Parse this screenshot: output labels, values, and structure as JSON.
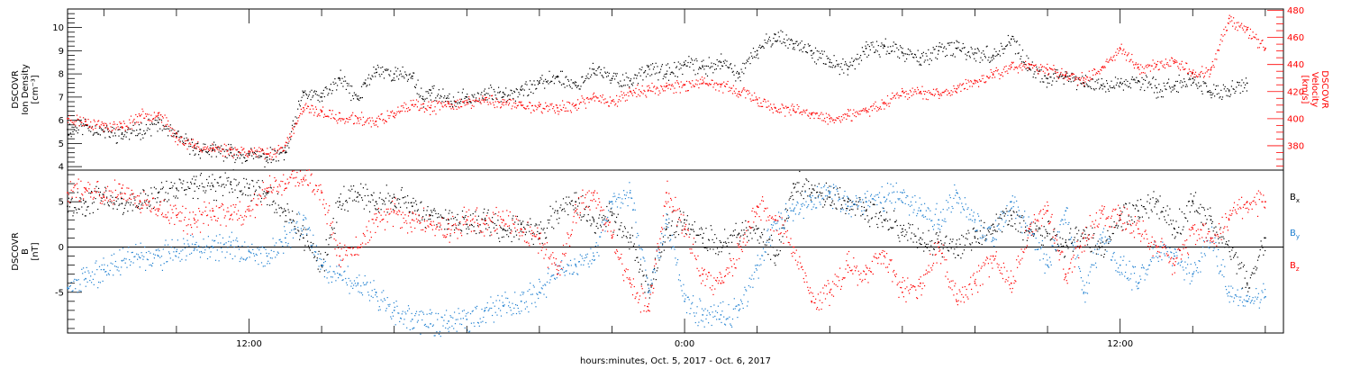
{
  "figure": {
    "xlabel": "hours:minutes, Oct.  5, 2017 - Oct.  6, 2017",
    "x_ticks": [
      "12:00",
      "0:00",
      "12:00"
    ]
  },
  "chart_data": [
    {
      "type": "scatter",
      "panel": "top",
      "ylabel_left": [
        "DSCOVR",
        "Ion Density",
        "[cm⁻³]"
      ],
      "ylabel_right": [
        "DSCOVR",
        "Velocity",
        "[km/s]"
      ],
      "x_unit": "hours since Oct. 5, 2017 00:00",
      "xlim": [
        7.0,
        40.5
      ],
      "ylim_left": [
        3.85,
        10.8
      ],
      "ylim_right": [
        362,
        481
      ],
      "y_ticks_left": [
        4,
        5,
        6,
        7,
        8,
        9,
        10
      ],
      "y_ticks_right": [
        380,
        400,
        420,
        440,
        460,
        480
      ],
      "colors": {
        "density": "#000000",
        "velocity": "#ff0000"
      },
      "series": [
        {
          "axis": "left",
          "x": [
            7.0,
            7.5,
            8.0,
            8.5,
            9.0,
            9.5,
            10.0,
            10.5,
            11.0,
            11.5,
            12.0,
            12.5,
            13.0,
            13.5,
            14.0,
            14.5,
            15.0,
            15.2,
            15.5,
            16.0,
            16.5,
            16.8,
            17.0,
            17.5,
            18.0,
            18.5,
            19.0,
            19.5,
            20.0,
            20.5,
            21.0,
            21.5,
            22.0,
            22.5,
            23.0,
            23.5,
            24.0,
            24.5,
            25.0,
            25.5,
            26.0,
            26.5,
            27.0,
            27.5,
            28.0,
            28.5,
            29.0,
            29.5,
            30.0,
            30.5,
            31.0,
            31.5,
            32.0,
            32.5,
            33.0,
            33.5,
            34.0,
            34.5,
            35.0,
            35.5,
            36.0,
            36.5,
            37.0,
            37.5,
            38.0,
            38.5,
            39.0,
            39.5
          ],
          "y": [
            5.6,
            5.8,
            5.5,
            5.4,
            5.6,
            5.9,
            5.3,
            4.8,
            4.7,
            4.6,
            4.5,
            4.4,
            4.6,
            7.2,
            7.0,
            7.8,
            6.9,
            7.6,
            8.2,
            8.0,
            7.9,
            6.9,
            7.3,
            6.8,
            7.0,
            7.1,
            7.2,
            7.3,
            7.6,
            7.9,
            7.5,
            8.2,
            7.8,
            7.7,
            8.3,
            8.0,
            8.4,
            8.3,
            8.5,
            8.0,
            9.0,
            9.7,
            9.3,
            9.0,
            8.5,
            8.2,
            9.1,
            9.2,
            8.9,
            8.7,
            9.0,
            9.1,
            8.9,
            8.8,
            9.5,
            8.2,
            7.8,
            7.9,
            7.6,
            7.5,
            7.6,
            7.7,
            7.4,
            7.5,
            7.8,
            7.2,
            7.3,
            7.6
          ]
        },
        {
          "axis": "right",
          "x": [
            7.0,
            7.5,
            8.0,
            8.5,
            9.0,
            9.5,
            10.0,
            10.5,
            11.0,
            11.5,
            12.0,
            12.5,
            13.0,
            13.5,
            14.0,
            14.5,
            15.0,
            15.5,
            16.0,
            16.5,
            17.0,
            17.5,
            18.0,
            18.5,
            19.0,
            19.5,
            20.0,
            20.5,
            21.0,
            21.5,
            22.0,
            22.5,
            23.0,
            23.5,
            24.0,
            24.5,
            25.0,
            25.5,
            26.0,
            26.5,
            27.0,
            27.5,
            28.0,
            28.5,
            29.0,
            29.5,
            30.0,
            30.5,
            31.0,
            31.5,
            32.0,
            32.5,
            33.0,
            33.5,
            34.0,
            34.5,
            35.0,
            35.5,
            36.0,
            36.5,
            37.0,
            37.5,
            38.0,
            38.5,
            39.0,
            39.5,
            40.0
          ],
          "y": [
            400,
            398,
            395,
            394,
            402,
            404,
            386,
            380,
            378,
            377,
            376,
            374,
            380,
            408,
            405,
            400,
            400,
            398,
            404,
            410,
            408,
            411,
            412,
            414,
            412,
            410,
            409,
            408,
            410,
            416,
            413,
            420,
            421,
            424,
            425,
            426,
            425,
            420,
            414,
            408,
            406,
            404,
            400,
            402,
            406,
            412,
            420,
            420,
            418,
            422,
            428,
            433,
            438,
            440,
            436,
            432,
            430,
            438,
            452,
            438,
            440,
            442,
            434,
            436,
            474,
            466,
            452
          ]
        }
      ]
    },
    {
      "type": "scatter",
      "panel": "bottom",
      "ylabel_left": [
        "DSCOVR",
        "B",
        "[nT]"
      ],
      "x_unit": "hours since Oct. 5, 2017 00:00",
      "xlim": [
        7.0,
        40.5
      ],
      "ylim": [
        -9.5,
        8.5
      ],
      "y_ticks": [
        -5,
        0,
        5
      ],
      "zero_line": true,
      "legend": [
        "Bx",
        "By",
        "Bz"
      ],
      "colors": {
        "Bx": "#000000",
        "By": "#1e7fd0",
        "Bz": "#ff0000"
      },
      "series": [
        {
          "name": "Bx",
          "x": [
            7.0,
            7.5,
            8.0,
            8.5,
            9.0,
            9.5,
            10.0,
            10.5,
            11.0,
            11.5,
            12.0,
            12.5,
            13.0,
            13.5,
            14.0,
            14.5,
            15.0,
            15.5,
            16.0,
            16.5,
            17.0,
            17.5,
            18.0,
            18.5,
            19.0,
            19.5,
            20.0,
            20.5,
            21.0,
            21.5,
            22.0,
            22.5,
            23.0,
            23.5,
            24.0,
            24.5,
            25.0,
            25.5,
            26.0,
            26.5,
            27.0,
            27.5,
            28.0,
            28.5,
            29.0,
            29.5,
            30.0,
            30.5,
            31.0,
            31.5,
            32.0,
            32.5,
            33.0,
            33.5,
            34.0,
            34.5,
            35.0,
            35.5,
            36.0,
            36.5,
            37.0,
            37.5,
            38.0,
            38.5,
            39.0,
            39.5,
            40.0
          ],
          "y": [
            4.5,
            5.0,
            5.5,
            4.8,
            5.0,
            6.0,
            6.5,
            7.0,
            6.8,
            7.2,
            6.5,
            6.0,
            4.0,
            1.0,
            -2.0,
            5.0,
            6.0,
            5.0,
            5.5,
            4.5,
            3.5,
            3.0,
            2.5,
            3.0,
            2.0,
            2.5,
            1.5,
            4.0,
            5.0,
            3.0,
            3.5,
            1.0,
            -5.0,
            2.0,
            3.0,
            1.0,
            0.5,
            1.5,
            2.0,
            -1.0,
            7.0,
            6.0,
            5.5,
            5.0,
            4.0,
            3.0,
            2.0,
            1.0,
            0.5,
            0.0,
            1.0,
            2.5,
            3.5,
            2.0,
            1.5,
            0.5,
            1.0,
            0.0,
            3.5,
            4.0,
            5.0,
            2.0,
            5.0,
            3.0,
            0.0,
            -4.0,
            1.0
          ]
        },
        {
          "name": "By",
          "x": [
            7.0,
            7.5,
            8.0,
            8.5,
            9.0,
            9.5,
            10.0,
            10.5,
            11.0,
            11.5,
            12.0,
            12.5,
            13.0,
            13.5,
            14.0,
            14.5,
            15.0,
            15.5,
            16.0,
            16.5,
            17.0,
            17.5,
            18.0,
            18.5,
            19.0,
            19.5,
            20.0,
            20.5,
            21.0,
            21.5,
            22.0,
            22.5,
            23.0,
            23.5,
            24.0,
            24.5,
            25.0,
            25.5,
            26.0,
            26.5,
            27.0,
            27.5,
            28.0,
            28.5,
            29.0,
            29.5,
            30.0,
            30.5,
            31.0,
            31.5,
            32.0,
            32.5,
            33.0,
            33.5,
            34.0,
            34.5,
            35.0,
            35.5,
            36.0,
            36.5,
            37.0,
            37.5,
            38.0,
            38.5,
            39.0,
            39.5,
            40.0
          ],
          "y": [
            -4.5,
            -3.5,
            -2.5,
            -1.5,
            -1.2,
            -1.0,
            -0.5,
            -0.2,
            0.0,
            0.2,
            -0.5,
            -1.0,
            1.0,
            3.0,
            -2.0,
            -3.0,
            -4.0,
            -5.0,
            -7.0,
            -8.0,
            -8.5,
            -8.2,
            -8.0,
            -7.0,
            -6.5,
            -6.0,
            -5.0,
            -3.0,
            -2.0,
            -1.0,
            5.0,
            6.0,
            -5.0,
            3.0,
            -6.0,
            -7.5,
            -7.5,
            -7.0,
            -2.0,
            3.0,
            4.0,
            5.0,
            6.0,
            4.5,
            5.0,
            5.5,
            6.0,
            4.0,
            3.0,
            6.0,
            3.0,
            1.0,
            5.0,
            2.0,
            -2.0,
            4.0,
            -5.0,
            1.0,
            -2.0,
            -4.0,
            0.0,
            -1.0,
            -3.0,
            1.0,
            -5.0,
            -6.0,
            -5.5
          ]
        },
        {
          "name": "Bz",
          "x": [
            7.0,
            7.5,
            8.0,
            8.5,
            9.0,
            9.5,
            10.0,
            10.5,
            11.0,
            11.5,
            12.0,
            12.5,
            13.0,
            13.5,
            14.0,
            14.5,
            15.0,
            15.5,
            16.0,
            16.5,
            17.0,
            17.5,
            18.0,
            18.5,
            19.0,
            19.5,
            20.0,
            20.5,
            21.0,
            21.5,
            22.0,
            22.5,
            23.0,
            23.5,
            24.0,
            24.5,
            25.0,
            25.5,
            26.0,
            26.5,
            27.0,
            27.5,
            28.0,
            28.5,
            29.0,
            29.5,
            30.0,
            30.5,
            31.0,
            31.5,
            32.0,
            32.5,
            33.0,
            33.5,
            34.0,
            34.5,
            35.0,
            35.5,
            36.0,
            36.5,
            37.0,
            37.5,
            38.0,
            38.5,
            39.0,
            39.5,
            40.0
          ],
          "y": [
            6.0,
            6.5,
            5.5,
            6.5,
            5.0,
            4.0,
            3.5,
            3.0,
            4.0,
            3.5,
            4.0,
            6.5,
            7.0,
            7.5,
            6.0,
            -1.0,
            0.0,
            3.0,
            4.0,
            3.0,
            2.5,
            2.0,
            3.0,
            2.5,
            3.0,
            2.0,
            1.0,
            -3.0,
            4.0,
            6.0,
            1.0,
            -4.0,
            -7.0,
            6.0,
            2.0,
            -3.0,
            -4.0,
            0.0,
            4.5,
            3.0,
            0.0,
            -6.0,
            -5.0,
            -2.0,
            -3.0,
            -1.0,
            -5.0,
            -4.0,
            0.0,
            -6.0,
            -4.0,
            -1.0,
            -4.0,
            2.0,
            4.0,
            -3.0,
            1.0,
            4.0,
            3.0,
            2.0,
            0.0,
            -2.0,
            2.0,
            1.0,
            3.0,
            5.0,
            5.0
          ]
        }
      ]
    }
  ]
}
